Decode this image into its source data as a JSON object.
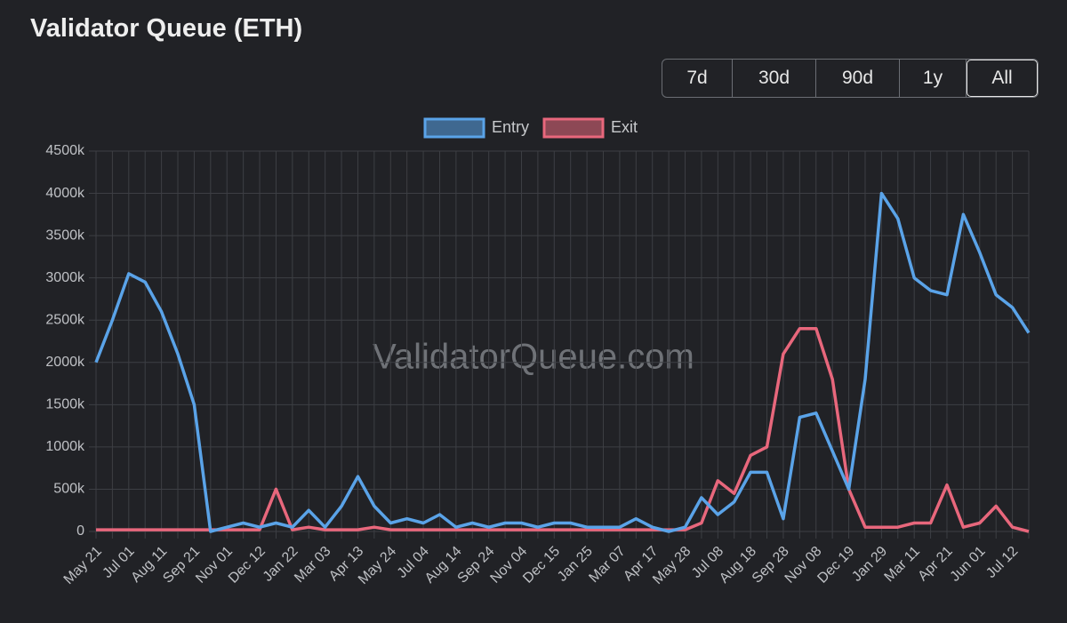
{
  "chart_data": {
    "type": "line",
    "title": "Validator Queue (ETH)",
    "range_buttons": [
      "7d",
      "30d",
      "90d",
      "1y",
      "All"
    ],
    "watermark": "ValidatorQueue.com",
    "categories": [
      "May 21",
      null,
      "Jul 01",
      null,
      "Aug 11",
      null,
      "Sep 21",
      null,
      "Nov 01",
      null,
      "Dec 12",
      null,
      "Jan 22",
      null,
      "Mar 03",
      null,
      "Apr 13",
      null,
      "May 24",
      null,
      "Jul 04",
      null,
      "Aug 14",
      null,
      "Sep 24",
      null,
      "Nov 04",
      null,
      "Dec 15",
      null,
      "Jan 25",
      null,
      "Mar 07",
      null,
      "Apr 17",
      null,
      "May 28",
      null,
      "Jul 08",
      null,
      "Aug 18",
      null,
      "Sep 28",
      null,
      "Nov 08",
      null,
      "Dec 19",
      null,
      "Jan 29",
      null,
      "Mar 11",
      null,
      "Apr 21",
      null,
      "Jun 01",
      null,
      "Jul 12",
      null
    ],
    "series": [
      {
        "name": "Entry",
        "color": "#5aa3e8",
        "values": [
          2000000,
          2500000,
          3050000,
          2950000,
          2600000,
          2100000,
          1500000,
          0,
          50000,
          100000,
          50000,
          100000,
          50000,
          250000,
          50000,
          300000,
          650000,
          300000,
          100000,
          150000,
          100000,
          200000,
          50000,
          100000,
          50000,
          100000,
          100000,
          50000,
          100000,
          100000,
          50000,
          50000,
          50000,
          150000,
          50000,
          0,
          50000,
          400000,
          200000,
          350000,
          700000,
          700000,
          150000,
          1350000,
          1400000,
          950000,
          500000,
          1800000,
          4000000,
          3700000,
          3000000,
          2850000,
          2800000,
          3750000,
          3300000,
          2800000,
          2650000,
          2350000
        ]
      },
      {
        "name": "Exit",
        "color": "#e8677c",
        "values": [
          20000,
          20000,
          20000,
          20000,
          20000,
          20000,
          20000,
          20000,
          20000,
          20000,
          20000,
          500000,
          20000,
          50000,
          20000,
          20000,
          20000,
          50000,
          20000,
          20000,
          20000,
          20000,
          20000,
          20000,
          20000,
          20000,
          20000,
          20000,
          20000,
          20000,
          20000,
          20000,
          20000,
          20000,
          20000,
          20000,
          20000,
          100000,
          600000,
          450000,
          900000,
          1000000,
          2100000,
          2400000,
          2400000,
          1800000,
          500000,
          50000,
          50000,
          50000,
          100000,
          100000,
          550000,
          50000,
          100000,
          300000,
          50000,
          0
        ]
      }
    ],
    "ylim": [
      0,
      4500000
    ],
    "yticks": [
      0,
      {
        "value": 500000,
        "label": "500k"
      },
      {
        "value": 1000000,
        "label": "1000k"
      },
      {
        "value": 1500000,
        "label": "1500k"
      },
      {
        "value": 2000000,
        "label": "2000k"
      },
      {
        "value": 2500000,
        "label": "2500k"
      },
      {
        "value": 3000000,
        "label": "3000k"
      },
      {
        "value": 3500000,
        "label": "3500k"
      },
      {
        "value": 4000000,
        "label": "4000k"
      },
      {
        "value": 4500000,
        "label": "4500k"
      }
    ],
    "grid": true,
    "legend": "top"
  }
}
